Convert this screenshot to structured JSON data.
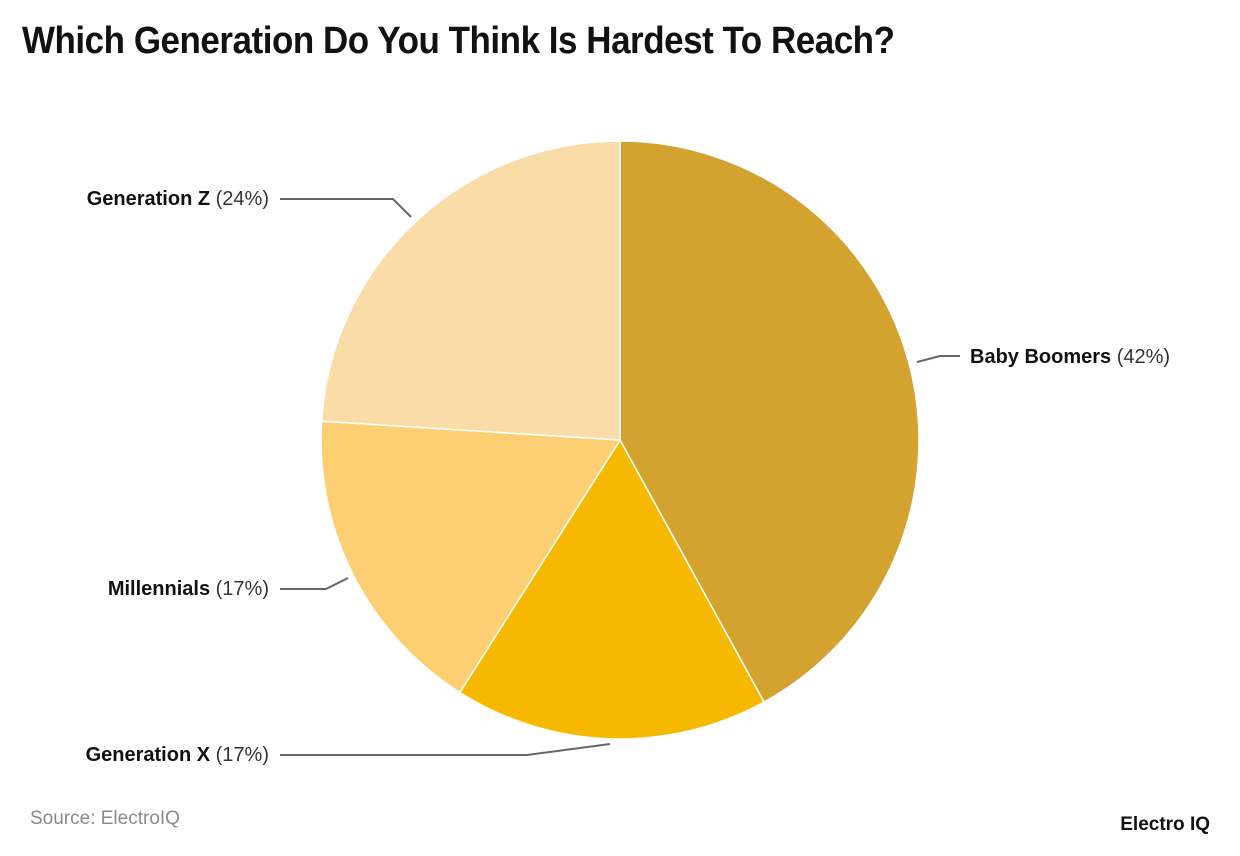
{
  "title": "Which Generation Do You Think Is Hardest To Reach?",
  "source": "Source: ElectroIQ",
  "brand": "Electro IQ",
  "colors": {
    "baby_boomers": "#D4A22F",
    "generation_x": "#F6B900",
    "millennials": "#FDCF72",
    "generation_z": "#F9DCA8",
    "leader_line": "#666666"
  },
  "labels": {
    "generation_z": {
      "name": "Generation Z",
      "pct": "(24%)"
    },
    "baby_boomers": {
      "name": "Baby Boomers",
      "pct": "(42%)"
    },
    "millennials": {
      "name": "Millennials",
      "pct": "(17%)"
    },
    "generation_x": {
      "name": "Generation X",
      "pct": "(17%)"
    }
  },
  "chart_data": {
    "type": "pie",
    "title": "Which Generation Do You Think Is Hardest To Reach?",
    "categories": [
      "Baby Boomers",
      "Generation X",
      "Millennials",
      "Generation Z"
    ],
    "values": [
      42,
      17,
      17,
      24
    ],
    "unit": "%",
    "start_angle": "12 o'clock, clockwise",
    "colors": [
      "#D4A22F",
      "#F6B900",
      "#FDCF72",
      "#F9DCA8"
    ],
    "legend": "none (direct labels with leader lines)",
    "source": "Source: ElectroIQ"
  }
}
